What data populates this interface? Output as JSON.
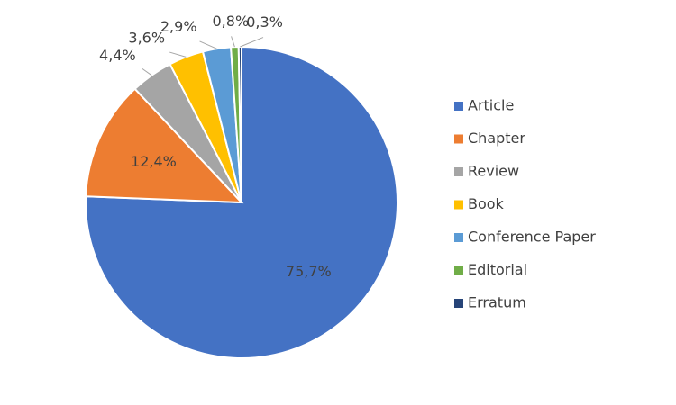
{
  "chart_data": {
    "type": "pie",
    "categories": [
      "Article",
      "Chapter",
      "Review",
      "Book",
      "Conference Paper",
      "Editorial",
      "Erratum"
    ],
    "values": [
      75.7,
      12.4,
      4.4,
      3.6,
      2.9,
      0.8,
      0.3
    ],
    "value_labels": [
      "75,7%",
      "12,4%",
      "4,4%",
      "3,6%",
      "2,9%",
      "0,8%",
      "0,3%"
    ],
    "colors": [
      "#4472c4",
      "#ed7d31",
      "#a5a5a5",
      "#ffc000",
      "#5b9bd5",
      "#70ad47",
      "#264478"
    ],
    "legend": "right"
  }
}
